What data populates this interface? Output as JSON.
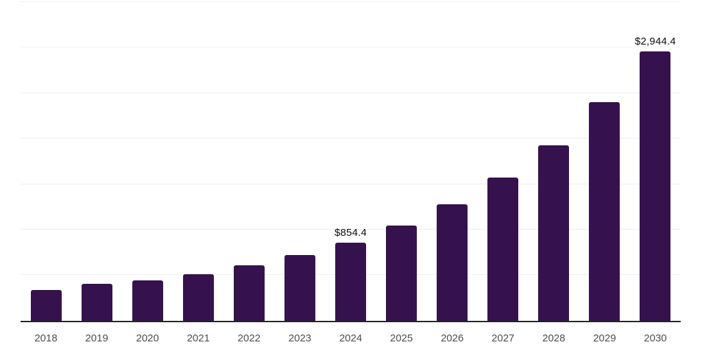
{
  "chart_data": {
    "type": "bar",
    "title": "",
    "xlabel": "",
    "ylabel": "",
    "categories": [
      "2018",
      "2019",
      "2020",
      "2021",
      "2022",
      "2023",
      "2024",
      "2025",
      "2026",
      "2027",
      "2028",
      "2029",
      "2030"
    ],
    "values": [
      340,
      407,
      444,
      507,
      604,
      716,
      854.4,
      1041,
      1272,
      1563,
      1918,
      2384,
      2944.4
    ],
    "annotations": [
      {
        "category_index": 6,
        "text": "$854.4"
      },
      {
        "category_index": 12,
        "text": "$2,944.4"
      }
    ],
    "ylim": [
      0,
      3500
    ],
    "gridline_interval": 500,
    "grid": "horizontal-only",
    "legend": "none",
    "y_axis_labels": "none",
    "colors": {
      "bar": "#35124D",
      "axis_line": "#242424",
      "gridline": "#f0f0f0",
      "tick_label": "#4d4d4d",
      "data_label": "#0b0b0b",
      "background": "#ffffff"
    }
  }
}
